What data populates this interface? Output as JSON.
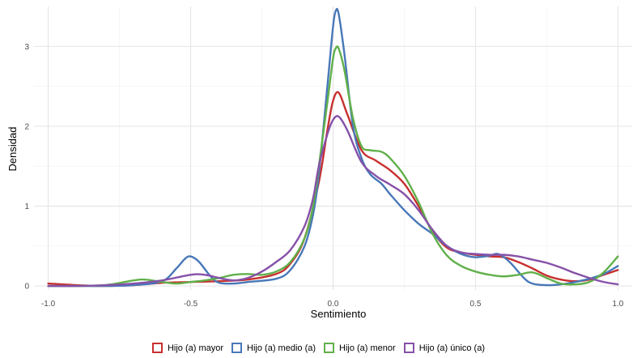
{
  "chart_data": {
    "type": "line",
    "subtype": "density",
    "xlabel": "Sentimiento",
    "ylabel": "Densidad",
    "xlim": [
      -1.05,
      1.05
    ],
    "ylim": [
      -0.05,
      3.5
    ],
    "x_ticks": [
      -1.0,
      -0.5,
      0.0,
      0.5,
      1.0
    ],
    "x_tick_labels": [
      "-1.0",
      "-0.5",
      "0.0",
      "0.5",
      "1.0"
    ],
    "y_ticks": [
      0,
      1,
      2,
      3
    ],
    "y_tick_labels": [
      "0",
      "1",
      "2",
      "3"
    ],
    "grid": true,
    "legend_position": "bottom",
    "series": [
      {
        "name": "Hijo (a) mayor",
        "color": "#c7302f",
        "points": [
          [
            -1.0,
            0.03
          ],
          [
            -0.9,
            0.01
          ],
          [
            -0.8,
            0.0
          ],
          [
            -0.7,
            0.01
          ],
          [
            -0.6,
            0.04
          ],
          [
            -0.5,
            0.05
          ],
          [
            -0.4,
            0.06
          ],
          [
            -0.3,
            0.08
          ],
          [
            -0.2,
            0.15
          ],
          [
            -0.15,
            0.28
          ],
          [
            -0.1,
            0.6
          ],
          [
            -0.05,
            1.3
          ],
          [
            -0.02,
            1.95
          ],
          [
            0.0,
            2.32
          ],
          [
            0.02,
            2.42
          ],
          [
            0.05,
            2.15
          ],
          [
            0.1,
            1.7
          ],
          [
            0.15,
            1.57
          ],
          [
            0.2,
            1.45
          ],
          [
            0.25,
            1.28
          ],
          [
            0.3,
            1.0
          ],
          [
            0.35,
            0.68
          ],
          [
            0.4,
            0.48
          ],
          [
            0.45,
            0.42
          ],
          [
            0.5,
            0.39
          ],
          [
            0.55,
            0.37
          ],
          [
            0.6,
            0.36
          ],
          [
            0.65,
            0.3
          ],
          [
            0.7,
            0.22
          ],
          [
            0.75,
            0.13
          ],
          [
            0.8,
            0.08
          ],
          [
            0.85,
            0.06
          ],
          [
            0.9,
            0.08
          ],
          [
            0.95,
            0.14
          ],
          [
            1.0,
            0.2
          ]
        ]
      },
      {
        "name": "Hijo (a) medio (a)",
        "color": "#4878b8",
        "points": [
          [
            -1.0,
            0.0
          ],
          [
            -0.9,
            0.0
          ],
          [
            -0.8,
            0.0
          ],
          [
            -0.7,
            0.01
          ],
          [
            -0.6,
            0.06
          ],
          [
            -0.55,
            0.22
          ],
          [
            -0.52,
            0.34
          ],
          [
            -0.5,
            0.37
          ],
          [
            -0.47,
            0.3
          ],
          [
            -0.43,
            0.12
          ],
          [
            -0.4,
            0.04
          ],
          [
            -0.35,
            0.03
          ],
          [
            -0.3,
            0.05
          ],
          [
            -0.2,
            0.09
          ],
          [
            -0.15,
            0.2
          ],
          [
            -0.1,
            0.5
          ],
          [
            -0.07,
            0.9
          ],
          [
            -0.05,
            1.4
          ],
          [
            -0.02,
            2.5
          ],
          [
            0.0,
            3.25
          ],
          [
            0.01,
            3.45
          ],
          [
            0.02,
            3.4
          ],
          [
            0.04,
            2.9
          ],
          [
            0.07,
            2.0
          ],
          [
            0.1,
            1.6
          ],
          [
            0.13,
            1.4
          ],
          [
            0.17,
            1.28
          ],
          [
            0.2,
            1.15
          ],
          [
            0.25,
            0.95
          ],
          [
            0.3,
            0.78
          ],
          [
            0.35,
            0.65
          ],
          [
            0.4,
            0.5
          ],
          [
            0.45,
            0.4
          ],
          [
            0.5,
            0.36
          ],
          [
            0.55,
            0.38
          ],
          [
            0.58,
            0.4
          ],
          [
            0.62,
            0.3
          ],
          [
            0.67,
            0.1
          ],
          [
            0.7,
            0.03
          ],
          [
            0.75,
            0.01
          ],
          [
            0.8,
            0.02
          ],
          [
            0.85,
            0.05
          ],
          [
            0.9,
            0.09
          ],
          [
            0.95,
            0.15
          ],
          [
            1.0,
            0.25
          ]
        ]
      },
      {
        "name": "Hijo (a) menor",
        "color": "#61b04a",
        "points": [
          [
            -1.0,
            0.0
          ],
          [
            -0.9,
            0.0
          ],
          [
            -0.8,
            0.01
          ],
          [
            -0.7,
            0.07
          ],
          [
            -0.66,
            0.08
          ],
          [
            -0.6,
            0.05
          ],
          [
            -0.55,
            0.03
          ],
          [
            -0.5,
            0.05
          ],
          [
            -0.45,
            0.07
          ],
          [
            -0.4,
            0.1
          ],
          [
            -0.35,
            0.14
          ],
          [
            -0.3,
            0.15
          ],
          [
            -0.25,
            0.14
          ],
          [
            -0.2,
            0.18
          ],
          [
            -0.15,
            0.3
          ],
          [
            -0.1,
            0.6
          ],
          [
            -0.07,
            1.0
          ],
          [
            -0.05,
            1.5
          ],
          [
            -0.02,
            2.3
          ],
          [
            0.0,
            2.85
          ],
          [
            0.01,
            2.98
          ],
          [
            0.02,
            2.97
          ],
          [
            0.04,
            2.7
          ],
          [
            0.07,
            2.1
          ],
          [
            0.1,
            1.75
          ],
          [
            0.13,
            1.7
          ],
          [
            0.17,
            1.68
          ],
          [
            0.2,
            1.6
          ],
          [
            0.25,
            1.38
          ],
          [
            0.3,
            1.05
          ],
          [
            0.35,
            0.65
          ],
          [
            0.4,
            0.38
          ],
          [
            0.45,
            0.25
          ],
          [
            0.5,
            0.18
          ],
          [
            0.55,
            0.14
          ],
          [
            0.6,
            0.12
          ],
          [
            0.65,
            0.14
          ],
          [
            0.7,
            0.17
          ],
          [
            0.75,
            0.1
          ],
          [
            0.8,
            0.03
          ],
          [
            0.85,
            0.02
          ],
          [
            0.9,
            0.05
          ],
          [
            0.95,
            0.17
          ],
          [
            1.0,
            0.37
          ]
        ]
      },
      {
        "name": "Hijo (a) único (a)",
        "color": "#8651a8",
        "points": [
          [
            -1.0,
            0.0
          ],
          [
            -0.9,
            0.0
          ],
          [
            -0.8,
            0.01
          ],
          [
            -0.7,
            0.03
          ],
          [
            -0.6,
            0.07
          ],
          [
            -0.5,
            0.14
          ],
          [
            -0.45,
            0.14
          ],
          [
            -0.4,
            0.1
          ],
          [
            -0.35,
            0.07
          ],
          [
            -0.3,
            0.1
          ],
          [
            -0.25,
            0.18
          ],
          [
            -0.2,
            0.3
          ],
          [
            -0.15,
            0.45
          ],
          [
            -0.1,
            0.75
          ],
          [
            -0.07,
            1.1
          ],
          [
            -0.05,
            1.5
          ],
          [
            -0.02,
            1.9
          ],
          [
            0.0,
            2.08
          ],
          [
            0.02,
            2.12
          ],
          [
            0.05,
            1.95
          ],
          [
            0.1,
            1.55
          ],
          [
            0.15,
            1.38
          ],
          [
            0.2,
            1.27
          ],
          [
            0.25,
            1.15
          ],
          [
            0.3,
            0.95
          ],
          [
            0.35,
            0.7
          ],
          [
            0.4,
            0.5
          ],
          [
            0.45,
            0.42
          ],
          [
            0.5,
            0.4
          ],
          [
            0.55,
            0.39
          ],
          [
            0.6,
            0.39
          ],
          [
            0.65,
            0.37
          ],
          [
            0.7,
            0.33
          ],
          [
            0.75,
            0.29
          ],
          [
            0.8,
            0.23
          ],
          [
            0.85,
            0.16
          ],
          [
            0.9,
            0.1
          ],
          [
            0.95,
            0.05
          ],
          [
            1.0,
            0.02
          ]
        ]
      }
    ]
  }
}
